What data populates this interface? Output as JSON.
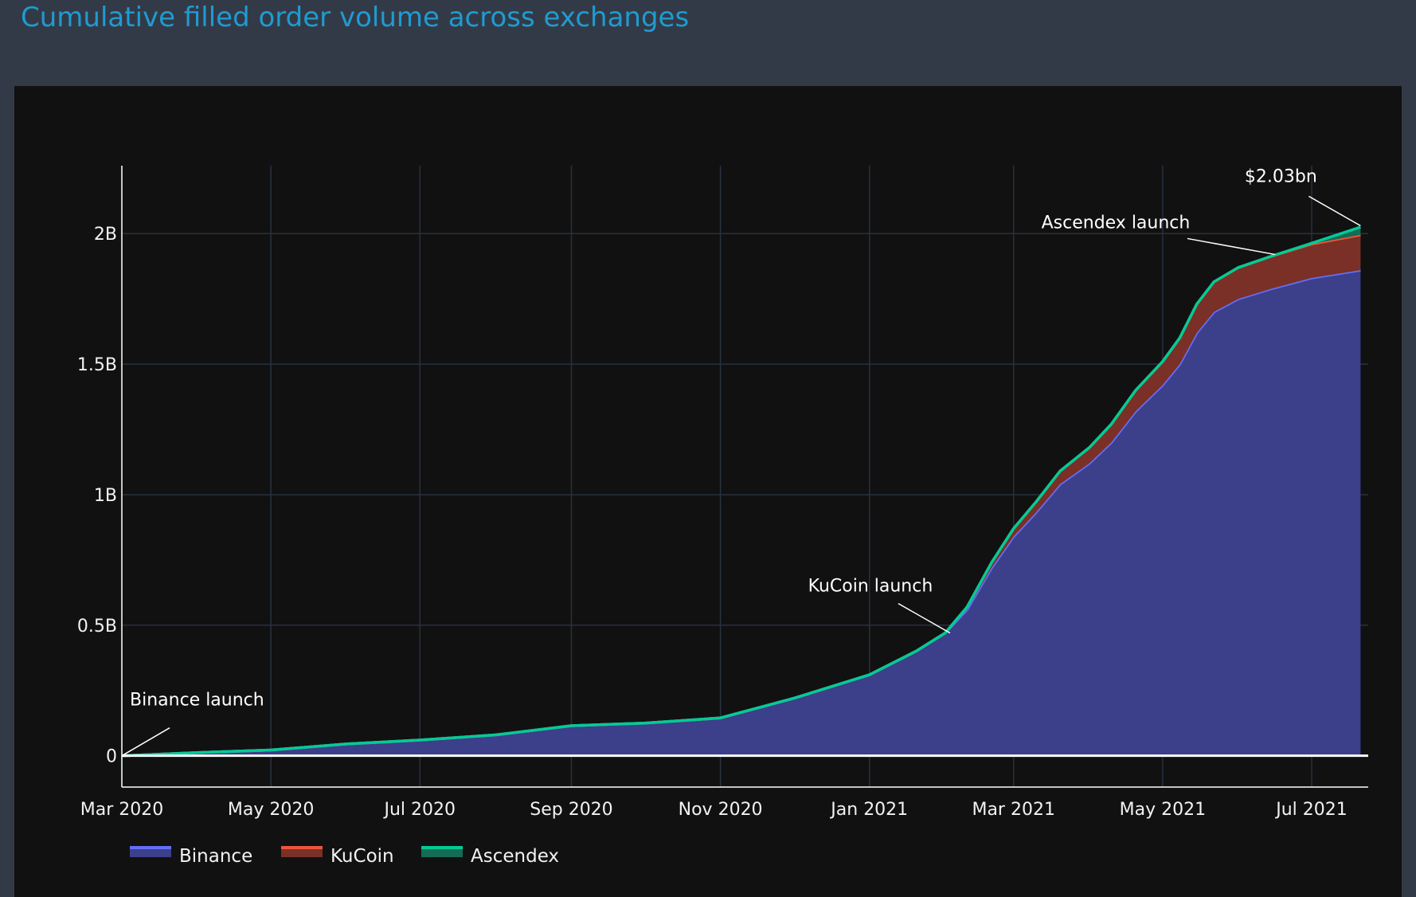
{
  "title": "Cumulative filled order volume across exchanges",
  "colors": {
    "page_bg": "#333a47",
    "plot_bg": "#111111",
    "title": "#1f9bd1",
    "grid": "#283040",
    "axis": "#ffffff"
  },
  "chart_data": {
    "type": "area",
    "stacked": true,
    "title": "Cumulative filled order volume across exchanges",
    "xlabel": "",
    "ylabel": "",
    "x_ticks": [
      "2020-03-01",
      "2020-05-01",
      "2020-07-01",
      "2020-09-01",
      "2020-11-01",
      "2021-01-01",
      "2021-03-01",
      "2021-05-01",
      "2021-07-01"
    ],
    "x_tick_labels": [
      "Mar 2020",
      "May 2020",
      "Jul 2020",
      "Sep 2020",
      "Nov 2020",
      "Jan 2021",
      "Mar 2021",
      "May 2021",
      "Jul 2021"
    ],
    "xlim": [
      "2020-03-01",
      "2021-07-24"
    ],
    "y_ticks": [
      0,
      500000000,
      1000000000,
      1500000000,
      2000000000
    ],
    "y_tick_labels": [
      "0",
      "0.5B",
      "1B",
      "1.5B",
      "2B"
    ],
    "ylim": [
      -120000000,
      2260000000
    ],
    "grid": true,
    "legend_position": "bottom-left",
    "x": [
      "2020-03-01",
      "2020-04-01",
      "2020-05-01",
      "2020-06-01",
      "2020-07-01",
      "2020-08-01",
      "2020-09-01",
      "2020-10-01",
      "2020-11-01",
      "2020-12-01",
      "2021-01-01",
      "2021-01-20",
      "2021-02-01",
      "2021-02-10",
      "2021-02-20",
      "2021-03-01",
      "2021-03-10",
      "2021-03-20",
      "2021-04-01",
      "2021-04-10",
      "2021-04-20",
      "2021-05-01",
      "2021-05-08",
      "2021-05-15",
      "2021-05-22",
      "2021-06-01",
      "2021-06-15",
      "2021-07-01",
      "2021-07-21"
    ],
    "series": [
      {
        "name": "Binance",
        "color": "#636efa",
        "fill": "#3c3f8a",
        "values": [
          0,
          12000000,
          22000000,
          45000000,
          60000000,
          80000000,
          115000000,
          125000000,
          145000000,
          220000000,
          310000000,
          400000000,
          470000000,
          560000000,
          720000000,
          840000000,
          930000000,
          1040000000,
          1120000000,
          1200000000,
          1320000000,
          1420000000,
          1500000000,
          1620000000,
          1700000000,
          1750000000,
          1790000000,
          1830000000,
          1860000000
        ]
      },
      {
        "name": "KuCoin",
        "color": "#ef553b",
        "fill": "#7a3026",
        "values": [
          0,
          0,
          0,
          0,
          0,
          0,
          0,
          0,
          0,
          0,
          0,
          0,
          0,
          10000000,
          20000000,
          30000000,
          40000000,
          50000000,
          60000000,
          70000000,
          80000000,
          90000000,
          100000000,
          110000000,
          115000000,
          120000000,
          125000000,
          130000000,
          135000000
        ]
      },
      {
        "name": "Ascendex",
        "color": "#00cc96",
        "fill": "#146c56",
        "values": [
          0,
          0,
          0,
          0,
          0,
          0,
          0,
          0,
          0,
          0,
          0,
          0,
          0,
          0,
          0,
          0,
          0,
          0,
          0,
          0,
          0,
          0,
          0,
          0,
          0,
          0,
          0,
          3000000,
          30000000
        ]
      }
    ],
    "annotations": [
      {
        "text": "Binance launch",
        "x": "2020-03-01",
        "y": 0
      },
      {
        "text": "KuCoin launch",
        "x": "2021-02-03",
        "y": 470000000
      },
      {
        "text": "Ascendex launch",
        "x": "2021-06-16",
        "y": 1920000000
      },
      {
        "text": "$2.03bn",
        "x": "2021-07-21",
        "y": 2030000000
      }
    ]
  }
}
